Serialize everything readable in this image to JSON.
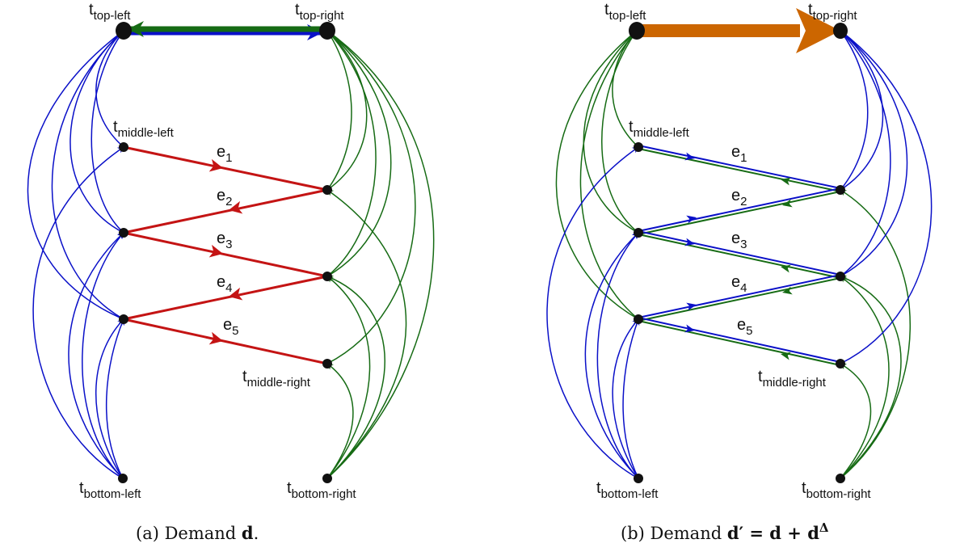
{
  "panels": [
    {
      "id": "a",
      "caption": {
        "prefix": "(a) Demand ",
        "symbol": "d",
        "suffix": "."
      },
      "node_labels": {
        "top_left": "top-left",
        "top_right": "top-right",
        "middle_left": "middle-left",
        "middle_right": "middle-right",
        "bottom_left": "bottom-left",
        "bottom_right": "bottom-right"
      },
      "edge_labels": [
        "1",
        "2",
        "3",
        "4",
        "5"
      ]
    },
    {
      "id": "b",
      "caption": {
        "prefix": "(b) Demand ",
        "symbol": "d′ = d + d",
        "suffix": "Δ"
      },
      "node_labels": {
        "top_left": "top-left",
        "top_right": "top-right",
        "middle_left": "middle-left",
        "middle_right": "middle-right",
        "bottom_left": "bottom-left",
        "bottom_right": "bottom-right"
      },
      "edge_labels": [
        "1",
        "2",
        "3",
        "4",
        "5"
      ]
    }
  ],
  "colors": {
    "blue": "#0a10c8",
    "green": "#166b14",
    "red": "#c41414",
    "orange": "#cc6600",
    "node": "#111111"
  }
}
